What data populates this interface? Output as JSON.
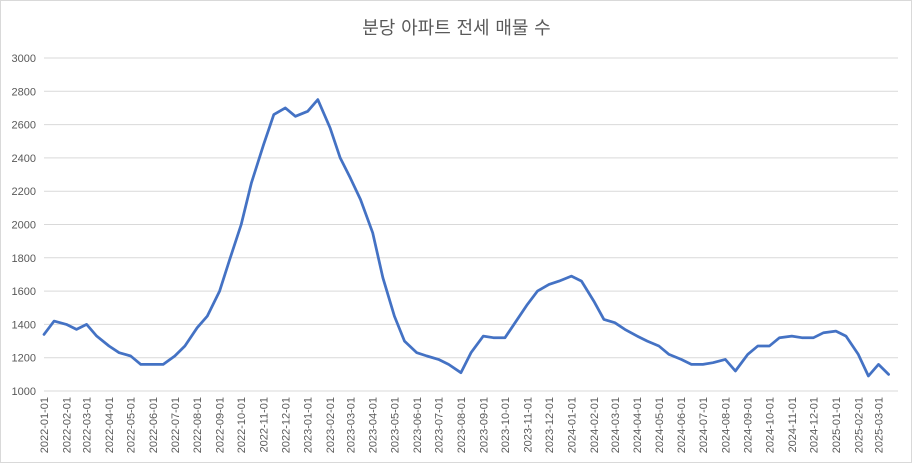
{
  "chart_data": {
    "type": "line",
    "title": "분당 아파트 전세 매물 수",
    "xlabel": "",
    "ylabel": "",
    "ylim": [
      1000,
      3000
    ],
    "grid": "horizontal",
    "legend": "none",
    "line_color": "#4472C4",
    "yticks": [
      1000,
      1200,
      1400,
      1600,
      1800,
      2000,
      2200,
      2400,
      2600,
      2800,
      3000
    ],
    "xticks": [
      "2022-01-01",
      "2022-02-01",
      "2022-03-01",
      "2022-04-01",
      "2022-05-01",
      "2022-06-01",
      "2022-07-01",
      "2022-08-01",
      "2022-09-01",
      "2022-10-01",
      "2022-11-01",
      "2022-12-01",
      "2023-01-01",
      "2023-02-01",
      "2023-03-01",
      "2023-04-01",
      "2023-05-01",
      "2023-06-01",
      "2023-07-01",
      "2023-08-01",
      "2023-09-01",
      "2023-10-01",
      "2023-11-01",
      "2023-12-01",
      "2024-01-01",
      "2024-02-01",
      "2024-03-01",
      "2024-04-01",
      "2024-05-01",
      "2024-06-01",
      "2024-07-01",
      "2024-08-01",
      "2024-09-01",
      "2024-10-01",
      "2024-11-01",
      "2024-12-01",
      "2025-01-01",
      "2025-02-01",
      "2025-03-01"
    ],
    "series": [
      {
        "x": [
          "2022-01-01",
          "2022-01-15",
          "2022-02-01",
          "2022-02-15",
          "2022-03-01",
          "2022-03-15",
          "2022-04-01",
          "2022-04-15",
          "2022-05-01",
          "2022-05-15",
          "2022-06-01",
          "2022-06-15",
          "2022-07-01",
          "2022-07-15",
          "2022-08-01",
          "2022-08-15",
          "2022-09-01",
          "2022-09-15",
          "2022-10-01",
          "2022-10-15",
          "2022-11-01",
          "2022-11-15",
          "2022-12-01",
          "2022-12-15",
          "2023-01-01",
          "2023-01-15",
          "2023-02-01",
          "2023-02-15",
          "2023-03-01",
          "2023-03-15",
          "2023-04-01",
          "2023-04-15",
          "2023-05-01",
          "2023-05-15",
          "2023-06-01",
          "2023-06-15",
          "2023-07-01",
          "2023-07-15",
          "2023-08-01",
          "2023-08-15",
          "2023-09-01",
          "2023-09-15",
          "2023-10-01",
          "2023-10-15",
          "2023-11-01",
          "2023-11-15",
          "2023-12-01",
          "2023-12-15",
          "2024-01-01",
          "2024-01-15",
          "2024-02-01",
          "2024-02-15",
          "2024-03-01",
          "2024-03-15",
          "2024-04-01",
          "2024-04-15",
          "2024-05-01",
          "2024-05-15",
          "2024-06-01",
          "2024-06-15",
          "2024-07-01",
          "2024-07-15",
          "2024-08-01",
          "2024-08-15",
          "2024-09-01",
          "2024-09-15",
          "2024-10-01",
          "2024-10-15",
          "2024-11-01",
          "2024-11-15",
          "2024-12-01",
          "2024-12-15",
          "2025-01-01",
          "2025-01-15",
          "2025-02-01",
          "2025-02-15",
          "2025-03-01",
          "2025-03-15"
        ],
        "values": [
          1340,
          1420,
          1400,
          1370,
          1400,
          1330,
          1270,
          1230,
          1210,
          1160,
          1160,
          1160,
          1210,
          1270,
          1380,
          1450,
          1600,
          1790,
          2000,
          2250,
          2480,
          2660,
          2700,
          2650,
          2680,
          2750,
          2580,
          2400,
          2280,
          2150,
          1950,
          1680,
          1450,
          1300,
          1230,
          1210,
          1190,
          1160,
          1110,
          1230,
          1330,
          1320,
          1320,
          1410,
          1520,
          1600,
          1640,
          1660,
          1690,
          1660,
          1540,
          1430,
          1410,
          1370,
          1330,
          1300,
          1270,
          1220,
          1190,
          1160,
          1160,
          1170,
          1190,
          1120,
          1220,
          1270,
          1270,
          1320,
          1330,
          1320,
          1320,
          1350,
          1360,
          1330,
          1220,
          1090,
          1160,
          1100
        ]
      }
    ]
  }
}
